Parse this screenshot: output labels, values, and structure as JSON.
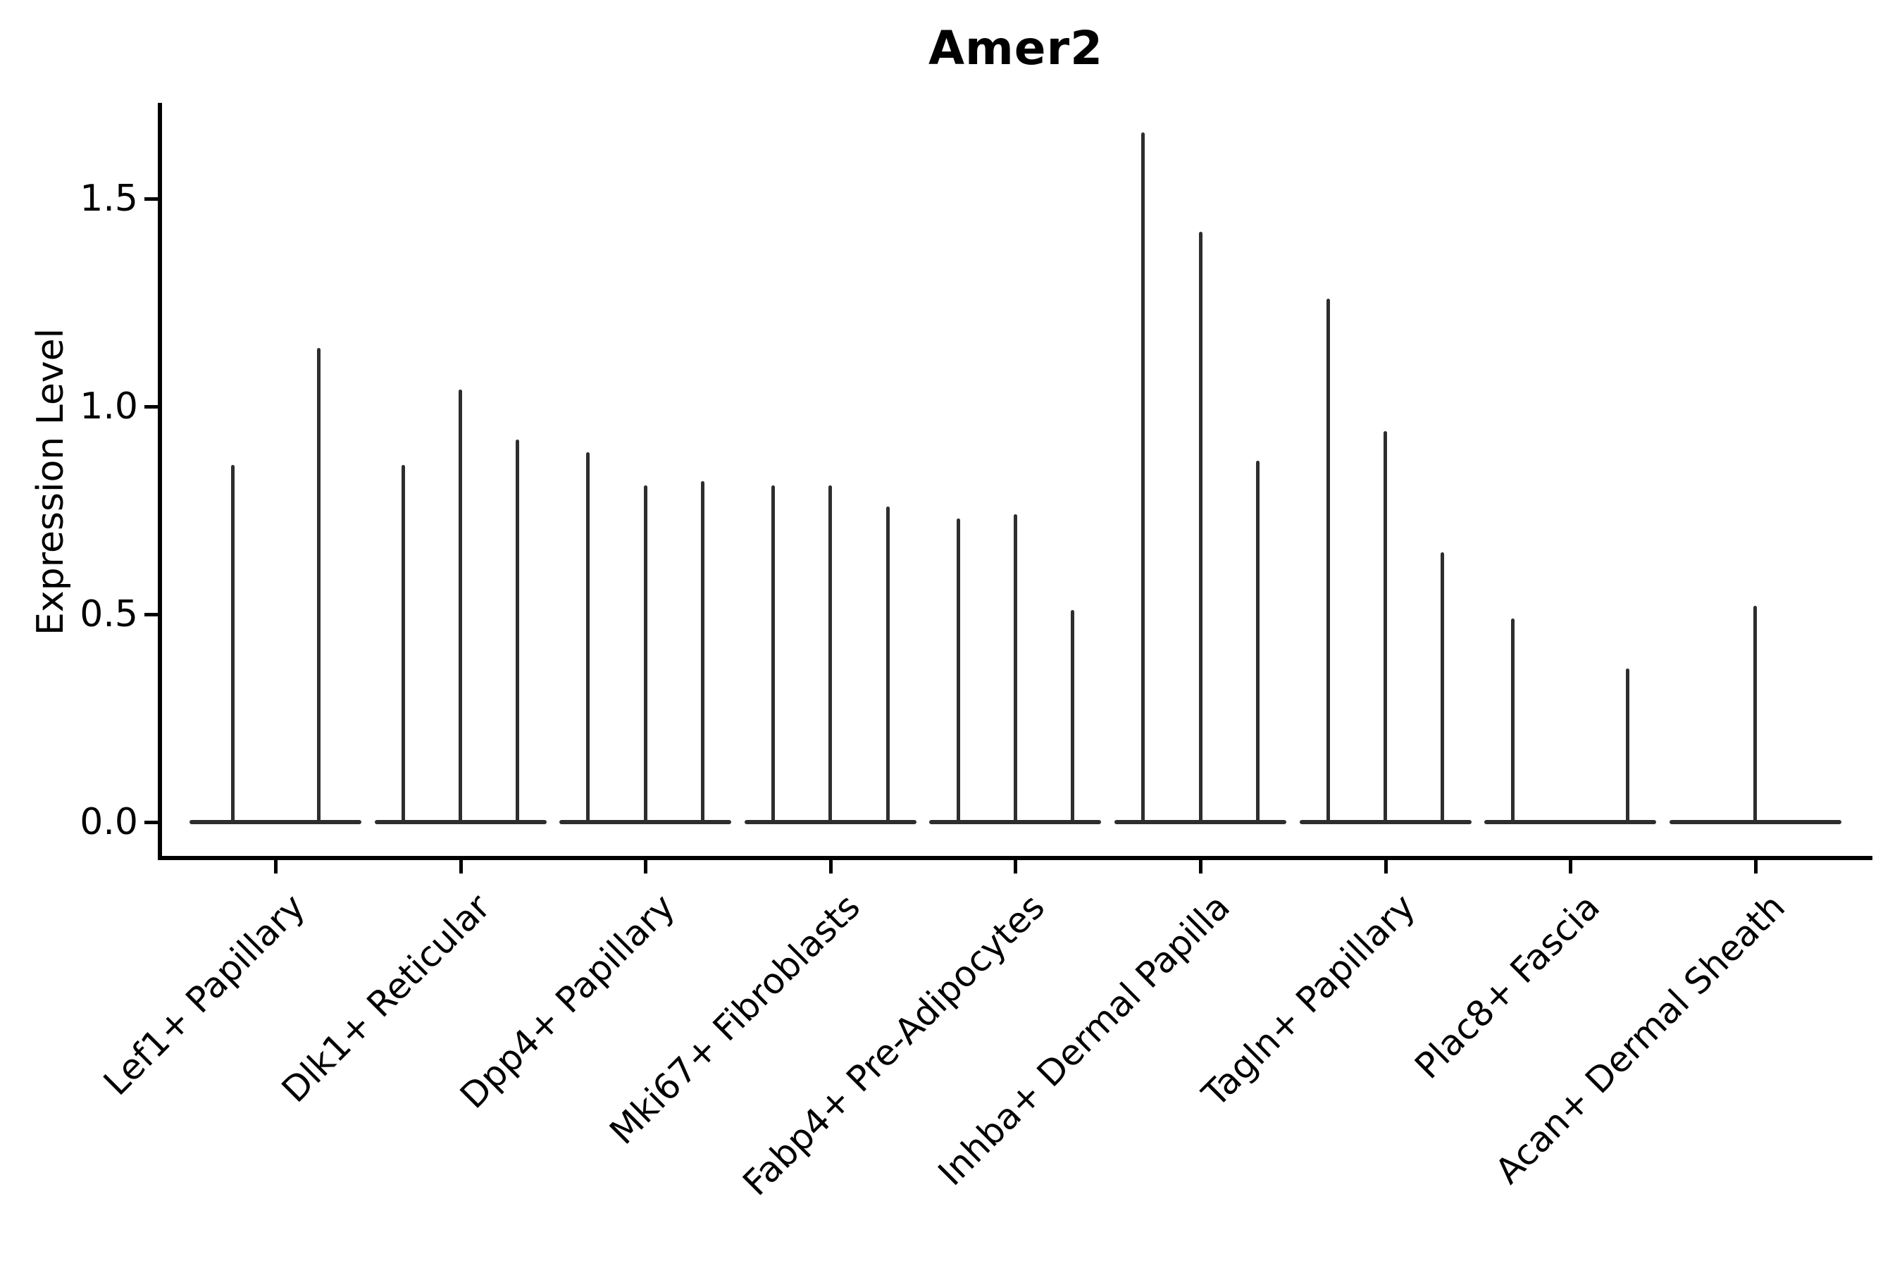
{
  "chart_data": {
    "type": "violin",
    "title": "Amer2",
    "xlabel": "",
    "ylabel": "Expression Level",
    "yticks": [
      0.0,
      0.5,
      1.0,
      1.5
    ],
    "ytick_labels": [
      "0.0",
      "0.5",
      "1.0",
      "1.5"
    ],
    "ylim": [
      -0.09,
      1.73
    ],
    "grid": false,
    "legend": "none",
    "ink_color": "#2e2e2e",
    "axis_color": "#000000",
    "note": "Each category shows narrow violins collapsed to a flat base at 0 with a thin spike; value listed is the max expression reached by each violin spike (0 = flat violin, no spike).",
    "groups": [
      {
        "label": "Lef1+ Papillary",
        "violin_max_values": [
          0.86,
          1.14
        ]
      },
      {
        "label": "Dlk1+ Reticular",
        "violin_max_values": [
          0.86,
          1.04,
          0.92
        ]
      },
      {
        "label": "Dpp4+ Papillary",
        "violin_max_values": [
          0.89,
          0.81,
          0.82
        ]
      },
      {
        "label": "Mki67+ Fibroblasts",
        "violin_max_values": [
          0.81,
          0.81,
          0.76
        ]
      },
      {
        "label": "Fabp4+ Pre-Adipocytes",
        "violin_max_values": [
          0.73,
          0.74,
          0.51
        ]
      },
      {
        "label": "Inhba+ Dermal Papilla",
        "violin_max_values": [
          1.66,
          1.42,
          0.87
        ]
      },
      {
        "label": "Tagln+ Papillary",
        "violin_max_values": [
          1.26,
          0.94,
          0.65
        ]
      },
      {
        "label": "Plac8+ Fascia",
        "violin_max_values": [
          0.49,
          0.0,
          0.37
        ]
      },
      {
        "label": "Acan+ Dermal Sheath",
        "violin_max_values": [
          0.52
        ]
      }
    ]
  }
}
